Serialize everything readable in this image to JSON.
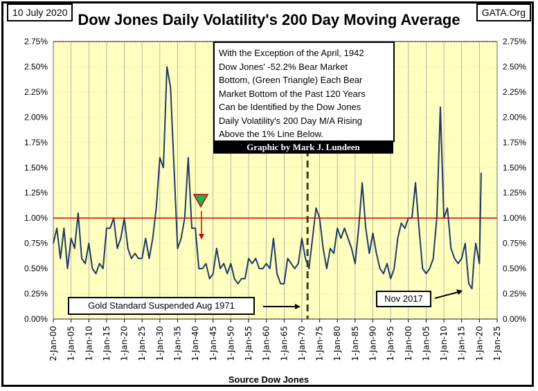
{
  "date_label": "10 July 2020",
  "source_site": "GATA.Org",
  "chart_data": {
    "type": "line",
    "title": "Dow Jones Daily Volatility's 200 Day Moving Average",
    "xlabel": "Source Dow Jones",
    "ylabel": "",
    "xlim": [
      1900,
      2025
    ],
    "ylim": [
      0,
      2.75
    ],
    "y_ticks": [
      "0.00%",
      "0.25%",
      "0.50%",
      "0.75%",
      "1.00%",
      "1.25%",
      "1.50%",
      "1.75%",
      "2.00%",
      "2.25%",
      "2.50%",
      "2.75%"
    ],
    "x_ticks": [
      "2-Jan-00",
      "1-Jan-05",
      "1-Jan-10",
      "1-Jan-15",
      "1-Jan-20",
      "1-Jan-25",
      "1-Jan-30",
      "1-Jan-35",
      "1-Jan-40",
      "1-Jan-45",
      "1-Jan-50",
      "1-Jan-55",
      "1-Jan-60",
      "1-Jan-65",
      "1-Jan-70",
      "1-Jan-75",
      "1-Jan-80",
      "1-Jan-85",
      "1-Jan-90",
      "1-Jan-95",
      "1-Jan-00",
      "1-Jan-05",
      "1-Jan-10",
      "1-Jan-15",
      "1-Jan-20",
      "1-Jan-25"
    ],
    "grid": true,
    "reference_line": {
      "value": 1.0,
      "color": "#d00000"
    },
    "event_line_year": 1971.6,
    "series": [
      {
        "color": "#1f3864",
        "x": [
          1900,
          1901,
          1902,
          1903,
          1904,
          1905,
          1906,
          1907,
          1908,
          1909,
          1910,
          1911,
          1912,
          1913,
          1914,
          1915,
          1916,
          1917,
          1918,
          1919,
          1920,
          1921,
          1922,
          1923,
          1924,
          1925,
          1926,
          1927,
          1928,
          1929,
          1930,
          1931,
          1932,
          1933,
          1934,
          1935,
          1936,
          1937,
          1938,
          1939,
          1940,
          1941,
          1942,
          1943,
          1944,
          1945,
          1946,
          1947,
          1948,
          1949,
          1950,
          1951,
          1952,
          1953,
          1954,
          1955,
          1956,
          1957,
          1958,
          1959,
          1960,
          1961,
          1962,
          1963,
          1964,
          1965,
          1966,
          1967,
          1968,
          1969,
          1970,
          1971,
          1972,
          1973,
          1974,
          1975,
          1976,
          1977,
          1978,
          1979,
          1980,
          1981,
          1982,
          1983,
          1984,
          1985,
          1986,
          1987,
          1988,
          1989,
          1990,
          1991,
          1992,
          1993,
          1994,
          1995,
          1996,
          1997,
          1998,
          1999,
          2000,
          2001,
          2002,
          2003,
          2004,
          2005,
          2006,
          2007,
          2008,
          2009,
          2010,
          2011,
          2012,
          2013,
          2014,
          2015,
          2016,
          2017,
          2017.9,
          2018.5,
          2019,
          2020,
          2020.5
        ],
        "y": [
          0.75,
          0.9,
          0.6,
          0.9,
          0.5,
          0.8,
          0.7,
          1.05,
          0.6,
          0.55,
          0.75,
          0.5,
          0.45,
          0.55,
          0.5,
          0.9,
          0.9,
          1.0,
          0.7,
          0.8,
          1.0,
          0.7,
          0.6,
          0.65,
          0.6,
          0.6,
          0.8,
          0.6,
          0.8,
          1.1,
          1.6,
          1.5,
          2.5,
          2.3,
          1.5,
          0.7,
          0.8,
          1.0,
          1.6,
          0.9,
          0.9,
          0.5,
          0.5,
          0.55,
          0.4,
          0.45,
          0.7,
          0.5,
          0.55,
          0.45,
          0.55,
          0.4,
          0.35,
          0.4,
          0.4,
          0.6,
          0.55,
          0.6,
          0.5,
          0.5,
          0.55,
          0.5,
          0.8,
          0.45,
          0.35,
          0.35,
          0.6,
          0.55,
          0.5,
          0.55,
          0.8,
          0.6,
          0.5,
          0.8,
          1.1,
          1.0,
          0.7,
          0.5,
          0.7,
          0.65,
          0.9,
          0.8,
          0.9,
          0.8,
          0.7,
          0.55,
          0.9,
          1.35,
          0.9,
          0.65,
          0.85,
          0.65,
          0.5,
          0.45,
          0.55,
          0.4,
          0.5,
          0.8,
          0.95,
          0.9,
          1.0,
          1.0,
          1.35,
          0.9,
          0.5,
          0.45,
          0.5,
          0.6,
          1.0,
          2.1,
          1.0,
          1.1,
          0.7,
          0.6,
          0.55,
          0.6,
          0.75,
          0.35,
          0.3,
          0.6,
          0.75,
          0.55,
          1.45
        ]
      }
    ],
    "annotations": {
      "main_note": [
        "With the Exception of the April, 1942",
        "Dow Jones' -52.2% Bear Market",
        "Bottom, (Green Triangle) Each Bear",
        "Market Bottom of the Past 120 Years",
        "Can be Identified by the Dow Jones",
        "Daily Volatility's 200 Day M/A Rising",
        "Above the 1% Line Below."
      ],
      "credit": "Graphic by Mark J. Lundeen",
      "gold_note": "Gold Standard Suspended Aug 1971",
      "nov_note": "Nov 2017",
      "triangle_color": "#22b14c"
    }
  }
}
